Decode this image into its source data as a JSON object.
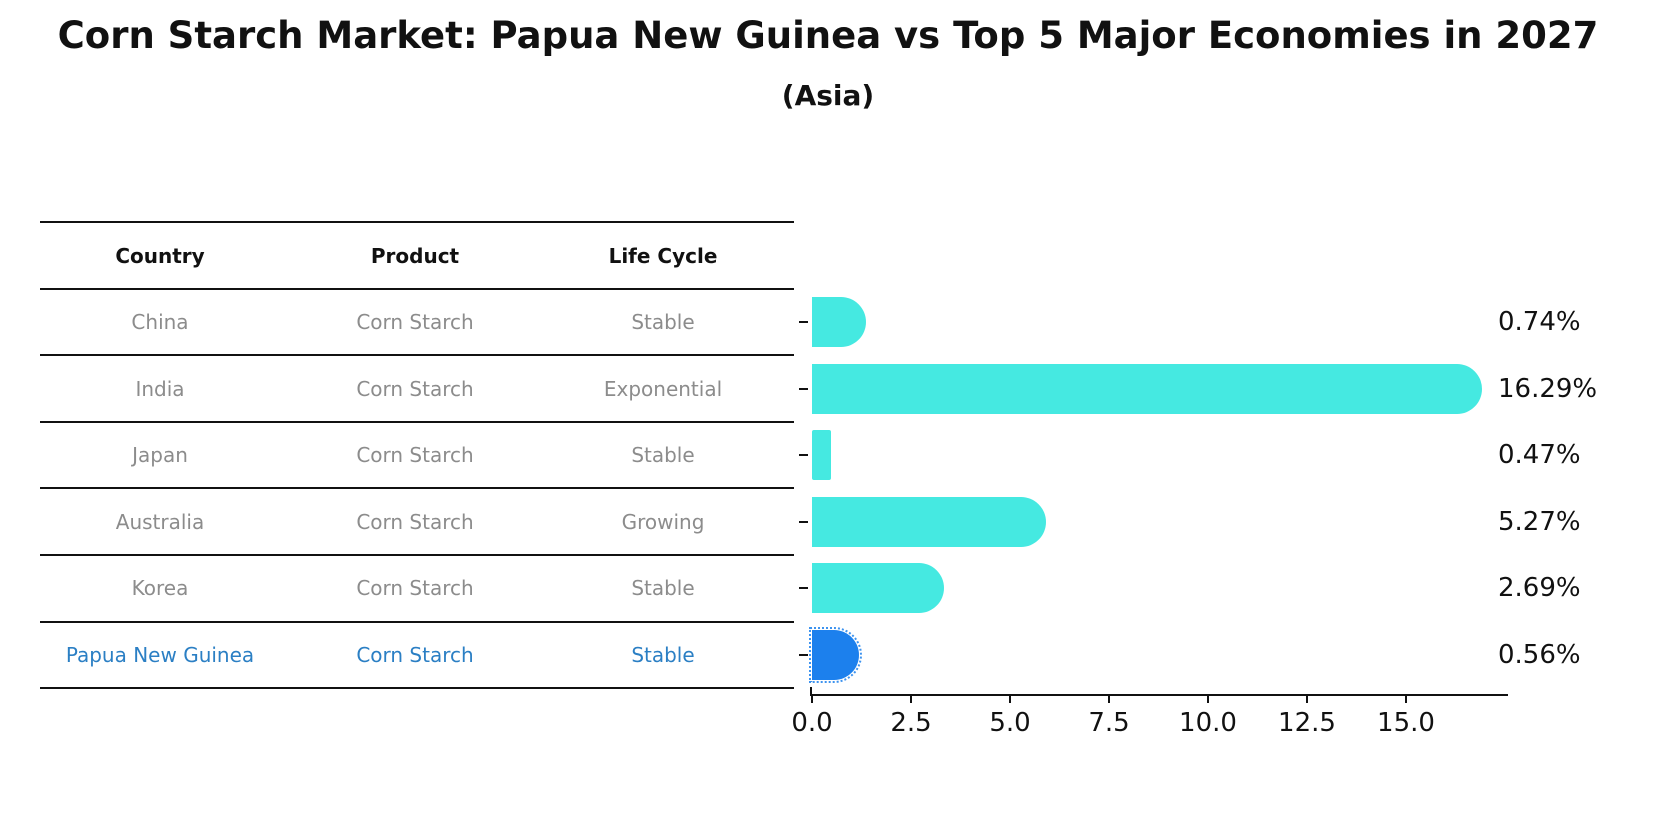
{
  "title": "Corn Starch Market: Papua New Guinea vs Top 5 Major Economies in 2027",
  "subtitle": "(Asia)",
  "table": {
    "headers": [
      "Country",
      "Product",
      "Life Cycle"
    ],
    "rows": [
      {
        "country": "China",
        "product": "Corn Starch",
        "life_cycle": "Stable",
        "highlight": false
      },
      {
        "country": "India",
        "product": "Corn Starch",
        "life_cycle": "Exponential",
        "highlight": false
      },
      {
        "country": "Japan",
        "product": "Corn Starch",
        "life_cycle": "Stable",
        "highlight": false
      },
      {
        "country": "Australia",
        "product": "Corn Starch",
        "life_cycle": "Growing",
        "highlight": false
      },
      {
        "country": "Korea",
        "product": "Corn Starch",
        "life_cycle": "Stable",
        "highlight": false
      },
      {
        "country": "Papua New Guinea",
        "product": "Corn Starch",
        "life_cycle": "Stable",
        "highlight": true
      }
    ]
  },
  "chart_data": {
    "type": "bar",
    "orientation": "horizontal",
    "title": "Corn Starch Market: Papua New Guinea vs Top 5 Major Economies in 2027",
    "subtitle": "(Asia)",
    "categories": [
      "China",
      "India",
      "Japan",
      "Australia",
      "Korea",
      "Papua New Guinea"
    ],
    "values": [
      0.74,
      16.29,
      0.47,
      5.27,
      2.69,
      0.56
    ],
    "value_labels": [
      "0.74%",
      "16.29%",
      "0.47%",
      "5.27%",
      "2.69%",
      "0.56%"
    ],
    "xlabel": "",
    "ylabel": "",
    "xlim": [
      0,
      17.6
    ],
    "x_tick_values": [
      0,
      2.5,
      5,
      7.5,
      10,
      12.5,
      15
    ],
    "x_tick_labels": [
      "0.0",
      "2.5",
      "5.0",
      "7.5",
      "10.0",
      "12.5",
      "15.0"
    ],
    "grid": false,
    "legend": false,
    "highlighted_category": "Papua New Guinea"
  },
  "colors": {
    "bar": "#45E9E1",
    "highlight_bar": "#1C80ED",
    "highlight_text": "#2b7fc4",
    "row_text": "#8c8c8c",
    "ink": "#111111"
  }
}
